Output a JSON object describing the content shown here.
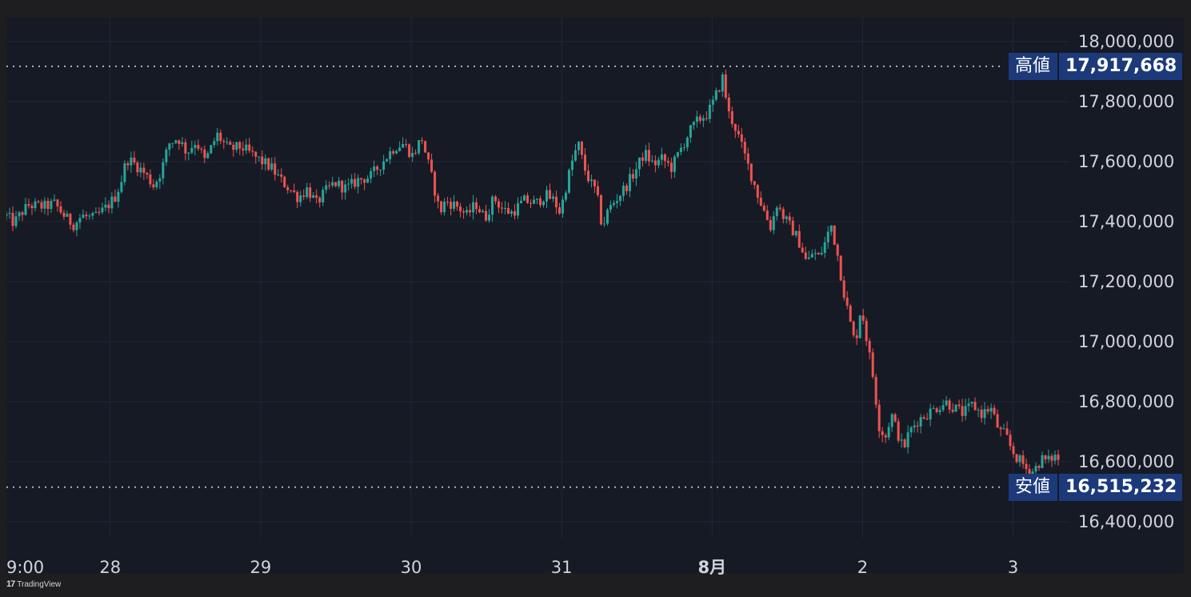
{
  "chart_data": {
    "type": "candlestick",
    "title": "",
    "xlabel": "",
    "ylabel": "",
    "ylim": [
      16300000,
      18100000
    ],
    "y_ticks": [
      "18,000,000",
      "17,800,000",
      "17,600,000",
      "17,400,000",
      "17,200,000",
      "17,000,000",
      "16,800,000",
      "16,600,000",
      "16,400,000"
    ],
    "y_tick_values": [
      18000000,
      17800000,
      17600000,
      17400000,
      17200000,
      17000000,
      16800000,
      16600000,
      16400000
    ],
    "x_ticks": [
      {
        "label": "9:00",
        "day": 0.0,
        "bold": false
      },
      {
        "label": "28",
        "day": 0.69,
        "bold": false
      },
      {
        "label": "29",
        "day": 1.69,
        "bold": false
      },
      {
        "label": "30",
        "day": 2.69,
        "bold": false
      },
      {
        "label": "31",
        "day": 3.69,
        "bold": false
      },
      {
        "label": "8月",
        "day": 4.69,
        "bold": true
      },
      {
        "label": "2",
        "day": 5.69,
        "bold": false
      },
      {
        "label": "3",
        "day": 6.69,
        "bold": false
      }
    ],
    "x_range_days": [
      0.0,
      6.99
    ],
    "high": {
      "label": "高値",
      "value": 17917668,
      "display": "17,917,668"
    },
    "low": {
      "label": "安値",
      "value": 16515232,
      "display": "16,515,232"
    },
    "colors": {
      "up": "#26a69a",
      "down": "#ef5350",
      "background": "#161a25",
      "grid": "#232734",
      "text": "#d1d4dc",
      "label_bg": "#1c3a7a"
    },
    "close_path": [
      [
        0.0,
        17420000
      ],
      [
        0.05,
        17395000
      ],
      [
        0.1,
        17430000
      ],
      [
        0.15,
        17455000
      ],
      [
        0.25,
        17450000
      ],
      [
        0.32,
        17460000
      ],
      [
        0.4,
        17410000
      ],
      [
        0.45,
        17390000
      ],
      [
        0.5,
        17420000
      ],
      [
        0.58,
        17410000
      ],
      [
        0.65,
        17440000
      ],
      [
        0.72,
        17480000
      ],
      [
        0.76,
        17530000
      ],
      [
        0.8,
        17610000
      ],
      [
        0.86,
        17590000
      ],
      [
        0.92,
        17560000
      ],
      [
        0.98,
        17520000
      ],
      [
        1.03,
        17570000
      ],
      [
        1.08,
        17660000
      ],
      [
        1.14,
        17680000
      ],
      [
        1.2,
        17630000
      ],
      [
        1.26,
        17670000
      ],
      [
        1.32,
        17600000
      ],
      [
        1.4,
        17690000
      ],
      [
        1.48,
        17640000
      ],
      [
        1.56,
        17650000
      ],
      [
        1.64,
        17620000
      ],
      [
        1.7,
        17600000
      ],
      [
        1.76,
        17580000
      ],
      [
        1.82,
        17540000
      ],
      [
        1.88,
        17510000
      ],
      [
        1.94,
        17480000
      ],
      [
        2.0,
        17510000
      ],
      [
        2.06,
        17460000
      ],
      [
        2.12,
        17500000
      ],
      [
        2.18,
        17530000
      ],
      [
        2.26,
        17510000
      ],
      [
        2.34,
        17540000
      ],
      [
        2.42,
        17550000
      ],
      [
        2.5,
        17600000
      ],
      [
        2.58,
        17650000
      ],
      [
        2.64,
        17660000
      ],
      [
        2.7,
        17620000
      ],
      [
        2.76,
        17680000
      ],
      [
        2.8,
        17600000
      ],
      [
        2.84,
        17520000
      ],
      [
        2.88,
        17430000
      ],
      [
        2.92,
        17470000
      ],
      [
        3.0,
        17450000
      ],
      [
        3.06,
        17420000
      ],
      [
        3.12,
        17460000
      ],
      [
        3.18,
        17410000
      ],
      [
        3.24,
        17480000
      ],
      [
        3.3,
        17440000
      ],
      [
        3.36,
        17430000
      ],
      [
        3.44,
        17470000
      ],
      [
        3.52,
        17460000
      ],
      [
        3.58,
        17490000
      ],
      [
        3.64,
        17470000
      ],
      [
        3.68,
        17430000
      ],
      [
        3.72,
        17520000
      ],
      [
        3.76,
        17600000
      ],
      [
        3.8,
        17660000
      ],
      [
        3.84,
        17580000
      ],
      [
        3.88,
        17530000
      ],
      [
        3.92,
        17500000
      ],
      [
        3.96,
        17380000
      ],
      [
        4.0,
        17440000
      ],
      [
        4.06,
        17480000
      ],
      [
        4.12,
        17520000
      ],
      [
        4.18,
        17570000
      ],
      [
        4.24,
        17630000
      ],
      [
        4.3,
        17590000
      ],
      [
        4.36,
        17610000
      ],
      [
        4.42,
        17580000
      ],
      [
        4.48,
        17640000
      ],
      [
        4.54,
        17700000
      ],
      [
        4.6,
        17740000
      ],
      [
        4.66,
        17760000
      ],
      [
        4.7,
        17800000
      ],
      [
        4.73,
        17840000
      ],
      [
        4.76,
        17880000
      ],
      [
        4.8,
        17760000
      ],
      [
        4.84,
        17720000
      ],
      [
        4.88,
        17660000
      ],
      [
        4.92,
        17600000
      ],
      [
        4.96,
        17540000
      ],
      [
        5.0,
        17480000
      ],
      [
        5.04,
        17430000
      ],
      [
        5.08,
        17380000
      ],
      [
        5.12,
        17460000
      ],
      [
        5.16,
        17420000
      ],
      [
        5.2,
        17390000
      ],
      [
        5.24,
        17360000
      ],
      [
        5.28,
        17320000
      ],
      [
        5.32,
        17260000
      ],
      [
        5.36,
        17300000
      ],
      [
        5.4,
        17280000
      ],
      [
        5.44,
        17330000
      ],
      [
        5.48,
        17390000
      ],
      [
        5.52,
        17300000
      ],
      [
        5.56,
        17180000
      ],
      [
        5.6,
        17080000
      ],
      [
        5.64,
        16990000
      ],
      [
        5.68,
        17120000
      ],
      [
        5.72,
        17000000
      ],
      [
        5.76,
        16880000
      ],
      [
        5.8,
        16720000
      ],
      [
        5.84,
        16680000
      ],
      [
        5.88,
        16760000
      ],
      [
        5.92,
        16700000
      ],
      [
        5.96,
        16640000
      ],
      [
        6.0,
        16700000
      ],
      [
        6.06,
        16740000
      ],
      [
        6.12,
        16760000
      ],
      [
        6.18,
        16780000
      ],
      [
        6.24,
        16800000
      ],
      [
        6.3,
        16780000
      ],
      [
        6.36,
        16760000
      ],
      [
        6.42,
        16790000
      ],
      [
        6.48,
        16760000
      ],
      [
        6.54,
        16780000
      ],
      [
        6.6,
        16700000
      ],
      [
        6.64,
        16690000
      ],
      [
        6.68,
        16640000
      ],
      [
        6.72,
        16610000
      ],
      [
        6.76,
        16590000
      ],
      [
        6.8,
        16560000
      ],
      [
        6.84,
        16580000
      ],
      [
        6.88,
        16610000
      ],
      [
        6.92,
        16600000
      ],
      [
        6.96,
        16620000
      ],
      [
        6.99,
        16610000
      ]
    ]
  },
  "footer": {
    "brand": "TradingView",
    "brand_mark": "17"
  }
}
